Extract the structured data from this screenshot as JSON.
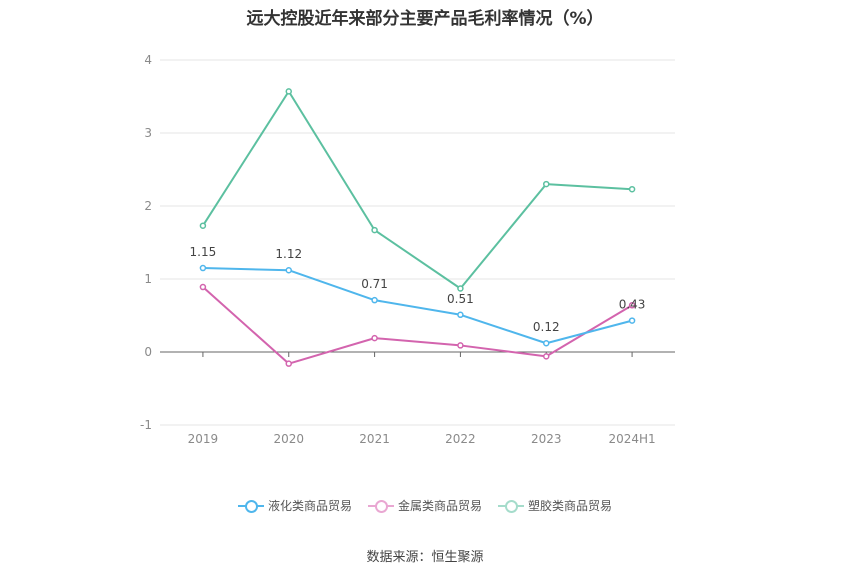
{
  "chart_data": {
    "type": "line",
    "title": "远大控股近年来部分主要产品毛利率情况（%）",
    "categories": [
      "2019",
      "2020",
      "2021",
      "2022",
      "2023",
      "2024H1"
    ],
    "ylim": [
      -1,
      4
    ],
    "yticks": [
      4,
      3,
      2,
      1,
      0,
      -1
    ],
    "grid": true,
    "legend_position": "bottom",
    "series": [
      {
        "name": "液化类商品贸易",
        "color": "#4fb6ec",
        "values": [
          1.15,
          1.12,
          0.71,
          0.51,
          0.12,
          0.43
        ],
        "labels": [
          "1.15",
          "1.12",
          "0.71",
          "0.51",
          "0.12",
          "0.43"
        ]
      },
      {
        "name": "金属类商品贸易",
        "color": "#d364ae",
        "values": [
          0.89,
          -0.16,
          0.19,
          0.09,
          -0.06,
          0.64
        ]
      },
      {
        "name": "塑胶类商品贸易",
        "color": "#5cc0a0",
        "values": [
          1.73,
          3.57,
          1.67,
          0.87,
          2.3,
          2.23
        ]
      }
    ]
  },
  "source": "数据来源：恒生聚源"
}
